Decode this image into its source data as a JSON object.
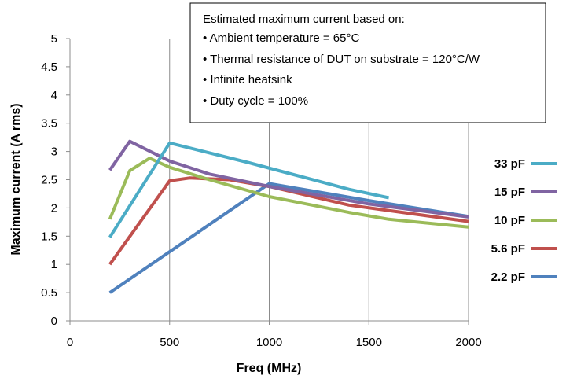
{
  "chart_data": {
    "type": "line",
    "title": "",
    "xlabel": "Freq (MHz)",
    "ylabel": "Maximum current (A rms)",
    "xlim": [
      0,
      2000
    ],
    "ylim": [
      0,
      5
    ],
    "x_ticks": [
      "0",
      "500",
      "1000",
      "1500",
      "2000"
    ],
    "y_ticks": [
      "0",
      "0.5",
      "1",
      "1.5",
      "2",
      "2.5",
      "3",
      "3.5",
      "4",
      "4.5",
      "5"
    ],
    "grid": "vertical",
    "legend_position": "right",
    "annotation": {
      "heading": "Estimated maximum current based on:",
      "items": [
        "• Ambient temperature = 65°C",
        "• Thermal resistance of DUT on substrate = 120°C/W",
        "• Infinite heatsink",
        "• Duty cycle = 100%"
      ]
    },
    "series": [
      {
        "name": "33 pF",
        "color": "#4bacc6",
        "x": [
          200,
          500,
          900,
          1400,
          1600
        ],
        "y": [
          1.48,
          3.15,
          2.8,
          2.33,
          2.18
        ]
      },
      {
        "name": "15 pF",
        "color": "#8064a2",
        "x": [
          200,
          300,
          500,
          700,
          1000,
          1500,
          2000
        ],
        "y": [
          2.67,
          3.18,
          2.83,
          2.6,
          2.38,
          2.07,
          1.84
        ]
      },
      {
        "name": "10 pF",
        "color": "#9bbb59",
        "x": [
          200,
          300,
          400,
          500,
          700,
          1000,
          1400,
          1600,
          2000
        ],
        "y": [
          1.8,
          2.66,
          2.88,
          2.72,
          2.5,
          2.2,
          1.92,
          1.8,
          1.66
        ]
      },
      {
        "name": "5.6 pF",
        "color": "#c0504d",
        "x": [
          200,
          500,
          600,
          800,
          1000,
          1400,
          2000
        ],
        "y": [
          1.0,
          2.48,
          2.53,
          2.5,
          2.38,
          2.05,
          1.76
        ]
      },
      {
        "name": "2.2 pF",
        "color": "#4f81bd",
        "x": [
          200,
          1000,
          1500,
          2000
        ],
        "y": [
          0.5,
          2.43,
          2.13,
          1.85
        ]
      }
    ]
  }
}
